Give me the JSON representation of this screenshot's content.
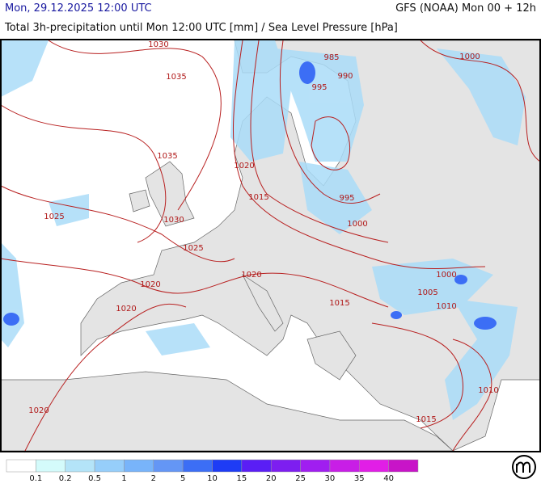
{
  "header": {
    "left": "Mon, 29.12.2025 12:00 UTC",
    "right": "GFS (NOAA) Mon 00 + 12h",
    "subtitle": "Total 3h-precipitation until Mon 12:00 UTC [mm] / Sea Level Pressure [hPa]"
  },
  "isobar_labels": [
    1030,
    1035,
    1035,
    1025,
    1030,
    1020,
    1015,
    1025,
    1020,
    1020,
    1020,
    985,
    990,
    995,
    995,
    1000,
    1000,
    1000,
    1005,
    1010,
    1015,
    1010,
    1015,
    1020
  ],
  "legend": {
    "colors": [
      "#ffffff",
      "#d4fbfb",
      "#b4e4f8",
      "#96cefa",
      "#78b4fa",
      "#6496f5",
      "#3c6ef5",
      "#1e3cf5",
      "#5a1ef5",
      "#7d1ef0",
      "#a01ef0",
      "#c81ee6",
      "#e11ee6",
      "#c814c8"
    ],
    "ticks": [
      0.1,
      0.2,
      0.5,
      1,
      2,
      5,
      10,
      15,
      20,
      25,
      30,
      35,
      40
    ]
  }
}
